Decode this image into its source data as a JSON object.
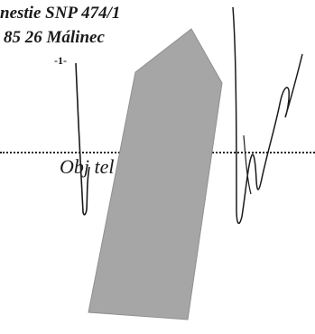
{
  "stamp": {
    "line1": "nestie SNP 474/1",
    "line2": "85 26 Málinec",
    "page_number": "-1-"
  },
  "signature_block": {
    "label": "Obj         tel"
  },
  "colors": {
    "ink": "#1a1a1a",
    "redaction": "#a6a6a6"
  }
}
